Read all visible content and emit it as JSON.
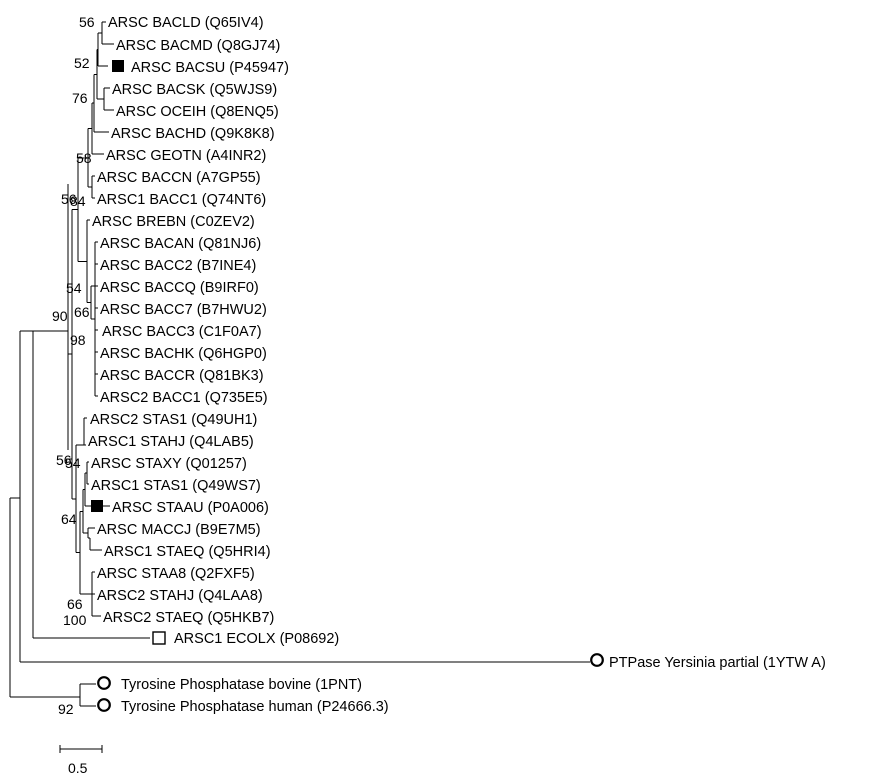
{
  "tree": {
    "leaves": [
      {
        "id": "l1",
        "label": "ARSC BACLD (Q65IV4)",
        "marker": "none"
      },
      {
        "id": "l2",
        "label": "ARSC BACMD (Q8GJ74)",
        "marker": "none"
      },
      {
        "id": "l3",
        "label": "ARSC BACSU (P45947)",
        "marker": "filled-square"
      },
      {
        "id": "l4",
        "label": "ARSC BACSK (Q5WJS9)",
        "marker": "none"
      },
      {
        "id": "l5",
        "label": "ARSC OCEIH (Q8ENQ5)",
        "marker": "none"
      },
      {
        "id": "l6",
        "label": "ARSC BACHD (Q9K8K8)",
        "marker": "none"
      },
      {
        "id": "l7",
        "label": "ARSC GEOTN (A4INR2)",
        "marker": "none"
      },
      {
        "id": "l8",
        "label": "ARSC BACCN (A7GP55)",
        "marker": "none"
      },
      {
        "id": "l9",
        "label": "ARSC1 BACC1 (Q74NT6)",
        "marker": "none"
      },
      {
        "id": "l10",
        "label": "ARSC BREBN (C0ZEV2)",
        "marker": "none"
      },
      {
        "id": "l11",
        "label": "ARSC BACAN (Q81NJ6)",
        "marker": "none"
      },
      {
        "id": "l12",
        "label": "ARSC BACC2 (B7INE4)",
        "marker": "none"
      },
      {
        "id": "l13",
        "label": "ARSC BACCQ (B9IRF0)",
        "marker": "none"
      },
      {
        "id": "l14",
        "label": "ARSC BACC7 (B7HWU2)",
        "marker": "none"
      },
      {
        "id": "l15",
        "label": "ARSC BACC3 (C1F0A7)",
        "marker": "none"
      },
      {
        "id": "l16",
        "label": "ARSC BACHK (Q6HGP0)",
        "marker": "none"
      },
      {
        "id": "l17",
        "label": "ARSC BACCR (Q81BK3)",
        "marker": "none"
      },
      {
        "id": "l18",
        "label": "ARSC2 BACC1 (Q735E5)",
        "marker": "none"
      },
      {
        "id": "l19",
        "label": "ARSC2 STAS1 (Q49UH1)",
        "marker": "none"
      },
      {
        "id": "l20",
        "label": "ARSC1 STAHJ (Q4LAB5)",
        "marker": "none"
      },
      {
        "id": "l21",
        "label": "ARSC STAXY (Q01257)",
        "marker": "none"
      },
      {
        "id": "l22",
        "label": "ARSC1 STAS1 (Q49WS7)",
        "marker": "none"
      },
      {
        "id": "l23",
        "label": "ARSC STAAU (P0A006)",
        "marker": "filled-square"
      },
      {
        "id": "l24",
        "label": "ARSC MACCJ (B9E7M5)",
        "marker": "none"
      },
      {
        "id": "l25",
        "label": "ARSC1 STAEQ (Q5HRI4)",
        "marker": "none"
      },
      {
        "id": "l26",
        "label": "ARSC STAA8 (Q2FXF5)",
        "marker": "none"
      },
      {
        "id": "l27",
        "label": "ARSC2 STAHJ (Q4LAA8)",
        "marker": "none"
      },
      {
        "id": "l28",
        "label": "ARSC2 STAEQ (Q5HKB7)",
        "marker": "none"
      },
      {
        "id": "l29",
        "label": "ARSC1 ECOLX (P08692)",
        "marker": "open-square"
      },
      {
        "id": "l30",
        "label": "PTPase Yersinia partial (1YTW A)",
        "marker": "open-circle"
      },
      {
        "id": "l31",
        "label": "Tyrosine Phosphatase bovine (1PNT)",
        "marker": "open-circle"
      },
      {
        "id": "l32",
        "label": "Tyrosine Phosphatase human (P24666.3)",
        "marker": "open-circle"
      }
    ],
    "bootstrap": [
      {
        "id": "b1",
        "value": "56"
      },
      {
        "id": "b2",
        "value": "52"
      },
      {
        "id": "b3",
        "value": "76"
      },
      {
        "id": "b4",
        "value": "58"
      },
      {
        "id": "b5",
        "value": "56"
      },
      {
        "id": "b6",
        "value": "84"
      },
      {
        "id": "b7",
        "value": "54"
      },
      {
        "id": "b8",
        "value": "66"
      },
      {
        "id": "b9",
        "value": "90"
      },
      {
        "id": "b10",
        "value": "98"
      },
      {
        "id": "b11",
        "value": "56"
      },
      {
        "id": "b12",
        "value": "54"
      },
      {
        "id": "b13",
        "value": "64"
      },
      {
        "id": "b14",
        "value": "66"
      },
      {
        "id": "b15",
        "value": "100"
      },
      {
        "id": "b16",
        "value": "92"
      }
    ],
    "scale_bar": {
      "label": "0.5",
      "value": 0.5
    }
  }
}
